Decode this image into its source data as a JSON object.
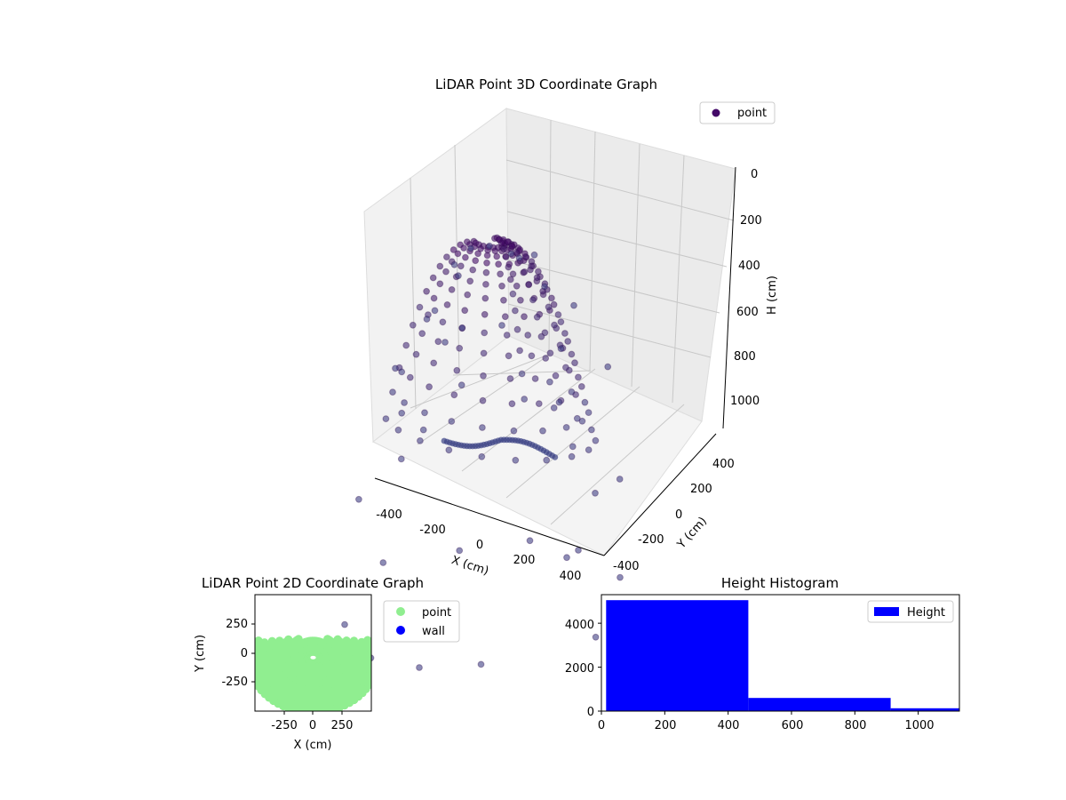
{
  "chart_data": [
    {
      "type": "scatter",
      "projection": "3d",
      "title": "LiDAR Point 3D Coordinate Graph",
      "xlabel": "X (cm)",
      "ylabel": "Y (cm)",
      "zlabel": "H (cm)",
      "xlim": [
        -500,
        500
      ],
      "ylim": [
        -500,
        500
      ],
      "zlim": [
        1100,
        0
      ],
      "x_ticks": [
        -400,
        -200,
        0,
        200,
        400
      ],
      "y_ticks": [
        -400,
        -200,
        0,
        200,
        400
      ],
      "z_ticks": [
        0,
        200,
        400,
        600,
        800,
        1000
      ],
      "z_inverted": true,
      "grid": true,
      "legend": {
        "position": "top-right",
        "entries": [
          "point"
        ]
      },
      "series": [
        {
          "name": "point",
          "color": "#440a68",
          "alpha": 0.6,
          "description_shape": "dense dome of points near H 0-600 with sparse ring near H 900-1100",
          "points": [
            [
              0,
              0,
              40
            ],
            [
              100,
              30,
              60
            ],
            [
              -100,
              20,
              70
            ],
            [
              200,
              40,
              120
            ],
            [
              -200,
              50,
              140
            ],
            [
              300,
              10,
              260
            ],
            [
              -300,
              30,
              300
            ],
            [
              350,
              -50,
              380
            ],
            [
              -350,
              -60,
              420
            ],
            [
              380,
              -20,
              500
            ],
            [
              -380,
              0,
              560
            ],
            [
              400,
              60,
              640
            ],
            [
              -420,
              40,
              700
            ],
            [
              150,
              -100,
              200
            ],
            [
              -150,
              -90,
              220
            ],
            [
              50,
              150,
              90
            ],
            [
              -60,
              160,
              110
            ],
            [
              250,
              120,
              180
            ],
            [
              -260,
              130,
              200
            ],
            [
              0,
              -200,
              250
            ],
            [
              120,
              -250,
              330
            ],
            [
              -130,
              -260,
              340
            ],
            [
              320,
              200,
              350
            ],
            [
              -320,
              210,
              370
            ],
            [
              420,
              150,
              620
            ],
            [
              -430,
              150,
              650
            ],
            [
              450,
              -120,
              760
            ],
            [
              -460,
              -110,
              780
            ],
            [
              0,
              400,
              950
            ],
            [
              200,
              380,
              980
            ],
            [
              -200,
              390,
              960
            ],
            [
              380,
              250,
              1000
            ],
            [
              -380,
              260,
              990
            ],
            [
              300,
              -350,
              1020
            ],
            [
              -300,
              -340,
              1030
            ],
            [
              100,
              -420,
              1050
            ],
            [
              -100,
              -430,
              1060
            ],
            [
              460,
              0,
              1000
            ],
            [
              -470,
              10,
              980
            ],
            [
              0,
              -300,
              1000
            ]
          ]
        }
      ]
    },
    {
      "type": "scatter",
      "title": "LiDAR Point 2D Coordinate Graph",
      "xlabel": "X (cm)",
      "ylabel": "Y (cm)",
      "xlim": [
        -500,
        500
      ],
      "ylim": [
        -500,
        500
      ],
      "x_ticks": [
        -250,
        0,
        250
      ],
      "y_ticks": [
        -250,
        0,
        250
      ],
      "legend": {
        "position": "outside-right",
        "entries": [
          "point",
          "wall"
        ]
      },
      "series": [
        {
          "name": "point",
          "color": "#90ee90",
          "description_shape": "concentric arcs filling lower half, dome top near Y 100"
        },
        {
          "name": "wall",
          "color": "#0000ff",
          "points": []
        }
      ]
    },
    {
      "type": "bar",
      "subtype": "histogram",
      "title": "Height Histogram",
      "xlim": [
        0,
        1130
      ],
      "ylim": [
        0,
        5300
      ],
      "x_ticks": [
        0,
        200,
        400,
        600,
        800,
        1000
      ],
      "y_ticks": [
        0,
        2000,
        4000
      ],
      "legend": {
        "position": "top-right",
        "entries": [
          "Height"
        ]
      },
      "series": [
        {
          "name": "Height",
          "color": "#0000ff",
          "bins": [
            {
              "from": 15,
              "to": 464,
              "value": 5050
            },
            {
              "from": 464,
              "to": 913,
              "value": 600
            },
            {
              "from": 913,
              "to": 1130,
              "value": 130
            }
          ]
        }
      ]
    }
  ]
}
